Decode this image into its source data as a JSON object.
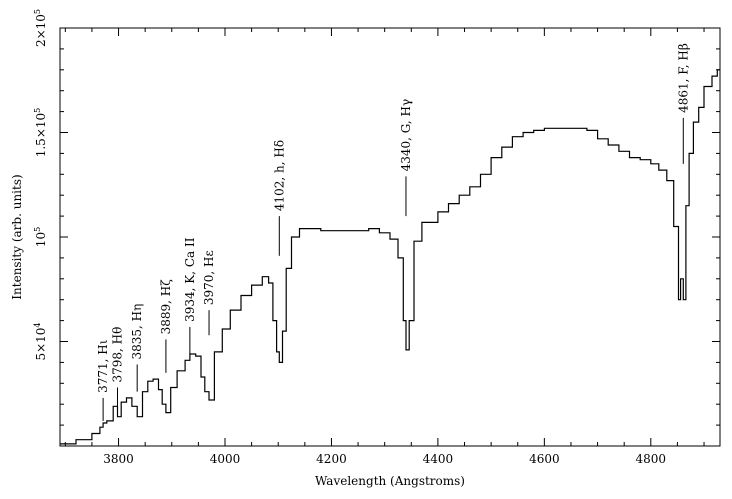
{
  "chart_data": {
    "type": "line",
    "title": "",
    "xlabel": "Wavelength (Angstroms)",
    "ylabel": "Intensity (arb. units)",
    "xlim": [
      3690,
      4930
    ],
    "ylim": [
      0,
      200000
    ],
    "x_ticks": [
      3800,
      4000,
      4200,
      4400,
      4600,
      4800
    ],
    "x_tick_labels": [
      "3800",
      "4000",
      "4200",
      "4400",
      "4600",
      "4800"
    ],
    "y_ticks": [
      50000,
      100000,
      150000,
      200000
    ],
    "y_tick_labels": [
      {
        "mantissa": "5×10",
        "exp": "4"
      },
      {
        "mantissa": "10",
        "exp": "5"
      },
      {
        "mantissa": "1.5×10",
        "exp": "5"
      },
      {
        "mantissa": "2×10",
        "exp": "5"
      }
    ],
    "grid": false,
    "series": [
      {
        "x": [
          3690,
          3720,
          3750,
          3765,
          3771,
          3778,
          3790,
          3798,
          3805,
          3815,
          3825,
          3835,
          3845,
          3855,
          3865,
          3875,
          3882,
          3889,
          3898,
          3910,
          3925,
          3934,
          3945,
          3955,
          3962,
          3970,
          3980,
          3995,
          4010,
          4030,
          4050,
          4070,
          4082,
          4090,
          4097,
          4102,
          4108,
          4115,
          4125,
          4140,
          4160,
          4180,
          4200,
          4220,
          4240,
          4270,
          4290,
          4310,
          4325,
          4335,
          4340,
          4346,
          4355,
          4370,
          4400,
          4420,
          4440,
          4460,
          4480,
          4500,
          4520,
          4540,
          4560,
          4580,
          4600,
          4620,
          4650,
          4680,
          4700,
          4720,
          4740,
          4760,
          4780,
          4800,
          4815,
          4830,
          4843,
          4852,
          4856,
          4861,
          4866,
          4872,
          4880,
          4890,
          4900,
          4915,
          4925,
          4930
        ],
        "y": [
          1000,
          3000,
          6000,
          9000,
          11000,
          12000,
          19000,
          14000,
          21000,
          23000,
          19000,
          14000,
          26000,
          31000,
          32000,
          27000,
          20000,
          16000,
          28000,
          36000,
          41000,
          44000,
          43000,
          33000,
          26000,
          22000,
          45000,
          56000,
          65000,
          72000,
          77000,
          81000,
          78000,
          60000,
          45000,
          40000,
          55000,
          85000,
          100000,
          104000,
          104000,
          103000,
          103000,
          103000,
          103000,
          104000,
          102000,
          99000,
          90000,
          60000,
          46000,
          60000,
          98000,
          107000,
          112000,
          116000,
          120000,
          124000,
          130000,
          138000,
          143000,
          148000,
          150000,
          151000,
          152000,
          152000,
          152000,
          151000,
          147000,
          144000,
          141000,
          138000,
          137000,
          135000,
          132000,
          127000,
          105000,
          70000,
          80000,
          70000,
          115000,
          140000,
          155000,
          162000,
          172000,
          177000,
          180000,
          180000
        ]
      }
    ],
    "annotations": [
      {
        "x": 3771,
        "line_from": 12000,
        "line_to": 23000,
        "label": "3771, Hι"
      },
      {
        "x": 3798,
        "line_from": 18000,
        "line_to": 28000,
        "label": "3798, Hθ"
      },
      {
        "x": 3835,
        "line_from": 26000,
        "line_to": 39000,
        "label": "3835, Hη"
      },
      {
        "x": 3889,
        "line_from": 35000,
        "line_to": 51000,
        "label": "3889, Hζ"
      },
      {
        "x": 3934,
        "line_from": 44000,
        "line_to": 57000,
        "label": "3934, K, Ca II"
      },
      {
        "x": 3970,
        "line_from": 53000,
        "line_to": 65000,
        "label": "3970, Hε"
      },
      {
        "x": 4102,
        "line_from": 91000,
        "line_to": 110000,
        "label": "4102, h, Hδ"
      },
      {
        "x": 4340,
        "line_from": 110000,
        "line_to": 129000,
        "label": "4340, G, Hγ"
      },
      {
        "x": 4861,
        "line_from": 135000,
        "line_to": 157000,
        "label": "4861, F, Hβ"
      }
    ]
  }
}
